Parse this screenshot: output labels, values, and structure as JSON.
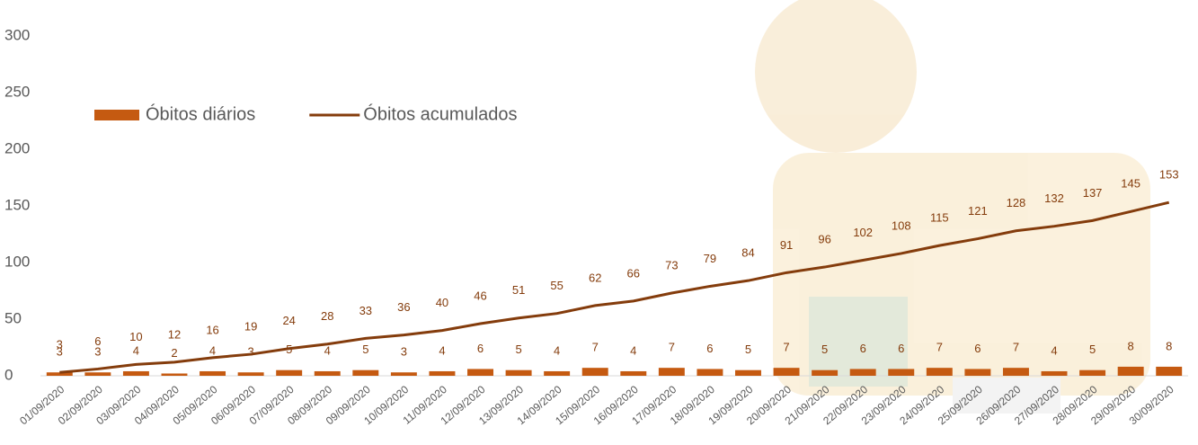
{
  "chart_data": {
    "type": "bar",
    "categories": [
      "01/09/2020",
      "02/09/2020",
      "03/09/2020",
      "04/09/2020",
      "05/09/2020",
      "06/09/2020",
      "07/09/2020",
      "08/09/2020",
      "09/09/2020",
      "10/09/2020",
      "11/09/2020",
      "12/09/2020",
      "13/09/2020",
      "14/09/2020",
      "15/09/2020",
      "16/09/2020",
      "17/09/2020",
      "18/09/2020",
      "19/09/2020",
      "20/09/2020",
      "21/09/2020",
      "22/09/2020",
      "23/09/2020",
      "24/09/2020",
      "25/09/2020",
      "26/09/2020",
      "27/09/2020",
      "28/09/2020",
      "29/09/2020",
      "30/09/2020"
    ],
    "series": [
      {
        "name": "Óbitos diários",
        "type": "bar",
        "color": "#c55a11",
        "values": [
          3,
          3,
          4,
          2,
          4,
          3,
          5,
          4,
          5,
          3,
          4,
          6,
          5,
          4,
          7,
          4,
          7,
          6,
          5,
          7,
          5,
          6,
          6,
          7,
          6,
          7,
          4,
          5,
          8,
          8
        ]
      },
      {
        "name": "Óbitos acumulados",
        "type": "line",
        "color": "#843c0c",
        "values": [
          3,
          6,
          10,
          12,
          16,
          19,
          24,
          28,
          33,
          36,
          40,
          46,
          51,
          55,
          62,
          66,
          73,
          79,
          84,
          91,
          96,
          102,
          108,
          115,
          121,
          128,
          132,
          137,
          145,
          153
        ]
      }
    ],
    "ylim": [
      0,
      300
    ],
    "yticks": [
      0,
      50,
      100,
      150,
      200,
      250,
      300
    ],
    "grid": false
  }
}
